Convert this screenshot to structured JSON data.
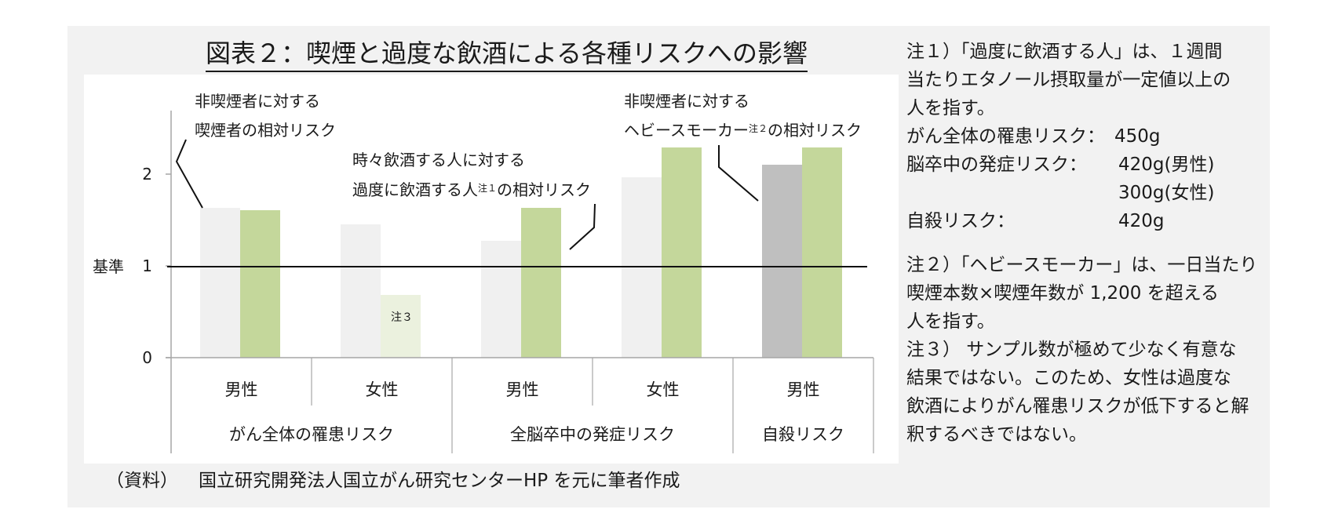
{
  "title": "図表２：喫煙と過度な飲酒による各種リスクへの影響",
  "chart": {
    "y_ticks": [
      {
        "label": "2",
        "value": 2
      },
      {
        "label": "1",
        "value": 1
      },
      {
        "label": "0",
        "value": 0
      }
    ],
    "baseline_label": "基準",
    "annotations": {
      "smoking": {
        "line1": "非喫煙者に対する",
        "line2": "喫煙者の相対リスク"
      },
      "drinking": {
        "line1": "時々飲酒する人に対する",
        "line2_pre": "過度に飲酒する人",
        "line2_sup": "注１",
        "line2_post": "の相対リスク"
      },
      "heavy_smoker": {
        "line1": "非喫煙者に対する",
        "line2_pre": "ヘビースモーカー",
        "line2_sup": "注２",
        "line2_post": "の相対リスク"
      }
    },
    "bar_note": "注３",
    "sub_categories": [
      "男性",
      "女性",
      "男性",
      "女性",
      "男性"
    ],
    "groups": [
      "がん全体の罹患リスク",
      "全脳卒中の発症リスク",
      "自殺リスク"
    ]
  },
  "chart_data": {
    "type": "bar",
    "title": "図表２：喫煙と過度な飲酒による各種リスクへの影響",
    "xlabel": "",
    "ylabel": "",
    "ylim": [
      0,
      2.5
    ],
    "yticks": [
      0,
      1,
      2
    ],
    "reference_line": {
      "value": 1,
      "label": "基準"
    },
    "categories": [
      "がん全体の罹患リスク / 男性",
      "がん全体の罹患リスク / 女性",
      "全脳卒中の発症リスク / 男性",
      "全脳卒中の発症リスク / 女性",
      "自殺リスク / 男性"
    ],
    "category_groups": [
      {
        "group": "がん全体の罹患リスク",
        "members": [
          "男性",
          "女性"
        ]
      },
      {
        "group": "全脳卒中の発症リスク",
        "members": [
          "男性",
          "女性"
        ]
      },
      {
        "group": "自殺リスク",
        "members": [
          "男性"
        ]
      }
    ],
    "series": [
      {
        "name": "喫煙者の相対リスク（非喫煙者に対する）／自殺リスクはヘビースモーカー",
        "values": [
          1.63,
          1.45,
          1.27,
          1.97,
          2.1
        ],
        "colors": [
          "#F0F0F0",
          "#F0F0F0",
          "#F0F0F0",
          "#F0F0F0",
          "#BFBFBF"
        ]
      },
      {
        "name": "過度に飲酒する人の相対リスク（時々飲酒する人に対する）",
        "values": [
          1.61,
          0.68,
          1.63,
          2.29,
          2.29
        ],
        "colors": [
          "#C4D79B",
          "#EBF1DE",
          "#C4D79B",
          "#C4D79B",
          "#C4D79B"
        ]
      }
    ],
    "annotations": [
      "非喫煙者に対する 喫煙者の相対リスク",
      "時々飲酒する人に対する 過度に飲酒する人注１の相対リスク",
      "非喫煙者に対する ヘビースモーカー注２の相対リスク",
      "注３"
    ],
    "grid": false,
    "legend": "none"
  },
  "notes": {
    "note1_lines": [
      "注１）「過度に飲酒する人」は、１週間",
      "当たりエタノール摂取量が一定値以上の",
      "人を指す。"
    ],
    "thresholds": [
      {
        "label": "がん全体の罹患リスク：",
        "value": "450g"
      },
      {
        "label": "脳卒中の発症リスク：",
        "value": "420g(男性)"
      },
      {
        "label": "",
        "value": "300g(女性)"
      },
      {
        "label": "自殺リスク：",
        "value": "420g"
      }
    ],
    "note2_lines": [
      "注２）「ヘビースモーカー」は、一日当たり",
      "喫煙本数×喫煙年数が 1,200 を超える",
      "人を指す。"
    ],
    "note3_lines": [
      "注３） サンプル数が極めて少なく有意な",
      "結果ではない。このため、女性は過度な",
      "飲酒によりがん罹患リスクが低下すると解",
      "釈するべきではない。"
    ]
  },
  "source": {
    "label": "（資料）",
    "text": "国立研究開発法人国立がん研究センターHP を元に筆者作成"
  },
  "colors": {
    "background": "#F2F2F2",
    "plot": "#FFFFFF",
    "bar_light_gray": "#F0F0F0",
    "bar_dark_gray": "#BFBFBF",
    "bar_green": "#C4D79B",
    "bar_pale_green": "#EBF1DE"
  }
}
